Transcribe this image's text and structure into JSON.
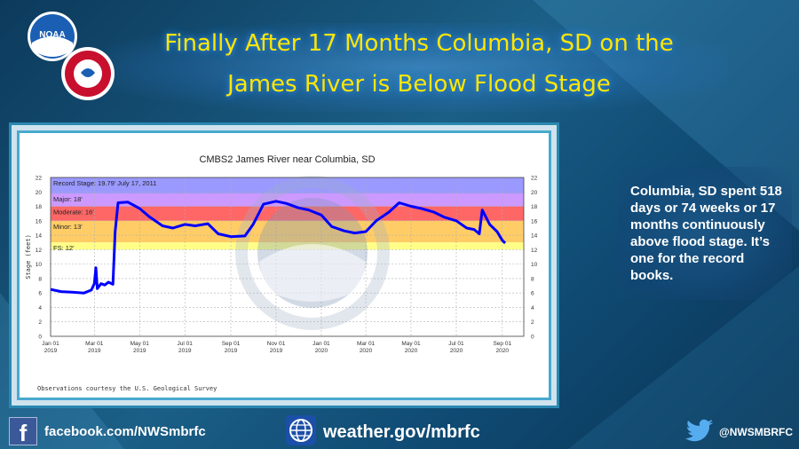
{
  "header": {
    "title_line1": "Finally After 17 Months Columbia, SD on the",
    "title_line2": "James River is Below Flood Stage",
    "logo_noaa": "NOAA",
    "logo_nws": "NATIONAL WEATHER SERVICE"
  },
  "side_note": "Columbia, SD spent 518 days or 74 weeks or 17 months continuously above flood stage.  It’s one for the record books.",
  "footer": {
    "facebook": "facebook.com/NWSmbrfc",
    "website": "weather.gov/mbrfc",
    "twitter": "@NWSMBRFC"
  },
  "colors": {
    "title": "#ffe600",
    "line": "#0000ff",
    "record": "#9999ff",
    "major": "#cc99ff",
    "moderate": "#ff6666",
    "action": "#ffcc66",
    "fs": "#ffff88"
  },
  "chart_data": {
    "type": "line",
    "title": "CMBS2   James River near Columbia, SD",
    "ylabel": "Stage (feet)",
    "xlabel": "",
    "ylim": [
      0,
      22
    ],
    "yticks": [
      0,
      2,
      4,
      6,
      8,
      10,
      12,
      14,
      16,
      18,
      20,
      22
    ],
    "xticks": [
      {
        "label": "Jan 01",
        "year": "2019",
        "date": "2019-01-01"
      },
      {
        "label": "Mar 01",
        "year": "2019",
        "date": "2019-03-01"
      },
      {
        "label": "May 01",
        "year": "2019",
        "date": "2019-05-01"
      },
      {
        "label": "Jul 01",
        "year": "2019",
        "date": "2019-07-01"
      },
      {
        "label": "Sep 01",
        "year": "2019",
        "date": "2019-09-01"
      },
      {
        "label": "Nov 01",
        "year": "2019",
        "date": "2019-11-01"
      },
      {
        "label": "Jan 01",
        "year": "2020",
        "date": "2020-01-01"
      },
      {
        "label": "Mar 01",
        "year": "2020",
        "date": "2020-03-01"
      },
      {
        "label": "May 01",
        "year": "2020",
        "date": "2020-05-01"
      },
      {
        "label": "Jul 01",
        "year": "2020",
        "date": "2020-07-01"
      },
      {
        "label": "Sep 01",
        "year": "2020",
        "date": "2020-09-01"
      }
    ],
    "xrange": [
      "2019-01-01",
      "2020-09-30"
    ],
    "bands": [
      {
        "label": "Record Stage: 19.79' July 17, 2011",
        "from": 19.79,
        "to": 22,
        "color": "#9999ff"
      },
      {
        "label": "Major: 18'",
        "from": 18,
        "to": 19.79,
        "color": "#cc99ff"
      },
      {
        "label": "Moderate: 16'",
        "from": 16,
        "to": 18,
        "color": "#ff6666"
      },
      {
        "label": "Minor: 13'",
        "from": 13,
        "to": 16,
        "color": "#ffcc66"
      },
      {
        "label": "FS: 12'",
        "from": 12,
        "to": 13,
        "color": "#ffff88"
      }
    ],
    "series": [
      {
        "color": "#0000ff",
        "points": [
          [
            "2019-01-01",
            6.5
          ],
          [
            "2019-01-15",
            6.2
          ],
          [
            "2019-02-01",
            6.1
          ],
          [
            "2019-02-15",
            6.0
          ],
          [
            "2019-02-25",
            6.4
          ],
          [
            "2019-03-01",
            7.3
          ],
          [
            "2019-03-03",
            9.5
          ],
          [
            "2019-03-05",
            6.6
          ],
          [
            "2019-03-10",
            7.3
          ],
          [
            "2019-03-15",
            7.1
          ],
          [
            "2019-03-20",
            7.5
          ],
          [
            "2019-03-26",
            7.2
          ],
          [
            "2019-03-29",
            14.5
          ],
          [
            "2019-04-02",
            18.5
          ],
          [
            "2019-04-15",
            18.6
          ],
          [
            "2019-05-01",
            17.7
          ],
          [
            "2019-05-15",
            16.5
          ],
          [
            "2019-06-01",
            15.3
          ],
          [
            "2019-06-15",
            15.0
          ],
          [
            "2019-07-01",
            15.5
          ],
          [
            "2019-07-15",
            15.3
          ],
          [
            "2019-08-01",
            15.6
          ],
          [
            "2019-08-15",
            14.2
          ],
          [
            "2019-09-01",
            13.8
          ],
          [
            "2019-09-20",
            13.9
          ],
          [
            "2019-10-01",
            15.5
          ],
          [
            "2019-10-15",
            18.3
          ],
          [
            "2019-11-01",
            18.7
          ],
          [
            "2019-11-15",
            18.4
          ],
          [
            "2019-12-01",
            17.8
          ],
          [
            "2019-12-15",
            17.5
          ],
          [
            "2020-01-01",
            16.8
          ],
          [
            "2020-01-15",
            15.2
          ],
          [
            "2020-02-01",
            14.6
          ],
          [
            "2020-02-15",
            14.3
          ],
          [
            "2020-03-01",
            14.5
          ],
          [
            "2020-03-15",
            16.0
          ],
          [
            "2020-04-01",
            17.2
          ],
          [
            "2020-04-15",
            18.5
          ],
          [
            "2020-05-01",
            18.0
          ],
          [
            "2020-05-15",
            17.7
          ],
          [
            "2020-06-01",
            17.2
          ],
          [
            "2020-06-15",
            16.5
          ],
          [
            "2020-07-01",
            16.0
          ],
          [
            "2020-07-15",
            15.0
          ],
          [
            "2020-07-25",
            14.8
          ],
          [
            "2020-08-01",
            14.2
          ],
          [
            "2020-08-05",
            17.5
          ],
          [
            "2020-08-15",
            15.5
          ],
          [
            "2020-08-25",
            14.5
          ],
          [
            "2020-09-01",
            13.3
          ],
          [
            "2020-09-05",
            12.9
          ]
        ]
      }
    ],
    "footnote": "Observations courtesy the U.S. Geological Survey",
    "watermark_text": "NATIONAL OCEANIC AND ATMOSPHERIC ADMINISTRATION · U.S. DEPARTMENT OF COMMERCE",
    "grid": true
  }
}
